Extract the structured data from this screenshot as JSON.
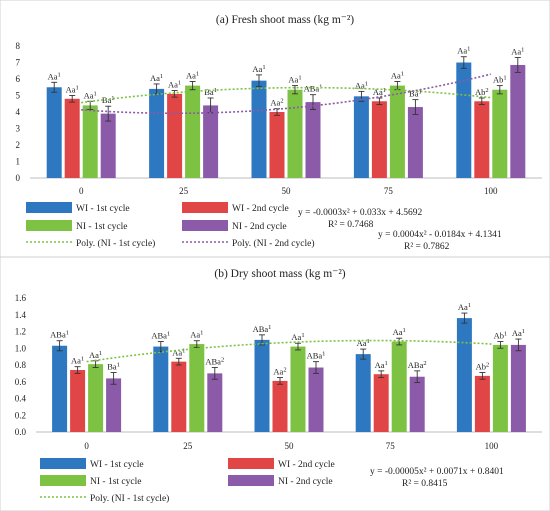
{
  "chart_data": [
    {
      "type": "bar",
      "title": "(a) Fresh shoot mass (kg m⁻²)",
      "categories": [
        "0",
        "25",
        "50",
        "75",
        "100"
      ],
      "ylim": [
        0,
        8
      ],
      "yticks": [
        "0",
        "1",
        "2",
        "3",
        "4",
        "5",
        "6",
        "7",
        "8"
      ],
      "grid": false,
      "legend_position": "bottom",
      "series": [
        {
          "name": "WI - 1st cycle",
          "color": "#2e78c2",
          "values": [
            5.5,
            5.4,
            5.9,
            4.95,
            7.0
          ],
          "errors": [
            0.3,
            0.3,
            0.35,
            0.3,
            0.35
          ],
          "labels": [
            "Aa1",
            "Aa1",
            "Aa1",
            "Aa1",
            "Aa1"
          ]
        },
        {
          "name": "WI - 2nd cycle",
          "color": "#e04646",
          "values": [
            4.8,
            5.1,
            4.0,
            4.65,
            4.65
          ],
          "errors": [
            0.2,
            0.2,
            0.2,
            0.2,
            0.2
          ],
          "labels": [
            "Aa1",
            "Aa1",
            "Aa2",
            "Aa1",
            "Ab2"
          ]
        },
        {
          "name": "NI - 1st cycle",
          "color": "#7dc242",
          "values": [
            4.4,
            5.6,
            5.35,
            5.6,
            5.35
          ],
          "errors": [
            0.25,
            0.25,
            0.25,
            0.25,
            0.25
          ],
          "labels": [
            "Aa1",
            "Aa1",
            "Aa1",
            "Aa1",
            "Ab1"
          ]
        },
        {
          "name": "NI - 2nd cycle",
          "color": "#8b5aa8",
          "values": [
            3.9,
            4.4,
            4.6,
            4.3,
            6.85
          ],
          "errors": [
            0.45,
            0.45,
            0.45,
            0.45,
            0.45
          ],
          "labels": [
            "Ba1",
            "Ba1",
            "ABa1",
            "Ba1",
            "Aa1"
          ]
        }
      ],
      "trendlines": [
        {
          "name": "Poly. (NI - 1st cycle)",
          "color": "#7dc242",
          "coefficients": [
            -0.0003,
            0.033,
            4.5692
          ],
          "equation": "y = -0.0003x² + 0.033x + 4.5692",
          "r2": "R² = 0.7468"
        },
        {
          "name": "Poly. (NI - 2nd cycle)",
          "color": "#8b5aa8",
          "coefficients": [
            0.0004,
            -0.0184,
            4.1341
          ],
          "equation": "y = 0.0004x² - 0.0184x + 4.1341",
          "r2": "R² = 0.7862"
        }
      ]
    },
    {
      "type": "bar",
      "title": "(b) Dry shoot mass (kg m⁻²)",
      "categories": [
        "0",
        "25",
        "50",
        "75",
        "100"
      ],
      "ylim": [
        0,
        1.6
      ],
      "yticks": [
        "0.0",
        "0.2",
        "0.4",
        "0.6",
        "0.8",
        "1.0",
        "1.2",
        "1.4",
        "1.6"
      ],
      "grid": false,
      "legend_position": "bottom",
      "series": [
        {
          "name": "WI - 1st cycle",
          "color": "#2e78c2",
          "values": [
            1.03,
            1.02,
            1.1,
            0.93,
            1.36
          ],
          "errors": [
            0.06,
            0.06,
            0.06,
            0.06,
            0.06
          ],
          "labels": [
            "ABa1",
            "ABa1",
            "ABa1",
            "Aa1",
            "Aa1"
          ]
        },
        {
          "name": "WI - 2nd cycle",
          "color": "#e04646",
          "values": [
            0.74,
            0.84,
            0.61,
            0.69,
            0.67
          ],
          "errors": [
            0.04,
            0.04,
            0.04,
            0.04,
            0.04
          ],
          "labels": [
            "Aa1",
            "Aa1",
            "Aa2",
            "Aa1",
            "Ab2"
          ]
        },
        {
          "name": "NI - 1st cycle",
          "color": "#7dc242",
          "values": [
            0.81,
            1.05,
            1.02,
            1.08,
            1.04
          ],
          "errors": [
            0.04,
            0.04,
            0.04,
            0.04,
            0.04
          ],
          "labels": [
            "Aa1",
            "Aa1",
            "Aa1",
            "Aa1",
            "Ab1"
          ]
        },
        {
          "name": "NI - 2nd cycle",
          "color": "#8b5aa8",
          "values": [
            0.64,
            0.7,
            0.77,
            0.66,
            1.04
          ],
          "errors": [
            0.07,
            0.07,
            0.07,
            0.07,
            0.07
          ],
          "labels": [
            "Ba1",
            "ABa2",
            "ABa1",
            "ABa2",
            "Aa1"
          ]
        }
      ],
      "trendlines": [
        {
          "name": "Poly. (NI - 1st cycle)",
          "color": "#7dc242",
          "coefficients": [
            -5e-05,
            0.0071,
            0.8401
          ],
          "equation": "y = -0.00005x² + 0.0071x + 0.8401",
          "r2": "R² = 0.8415"
        }
      ]
    }
  ]
}
